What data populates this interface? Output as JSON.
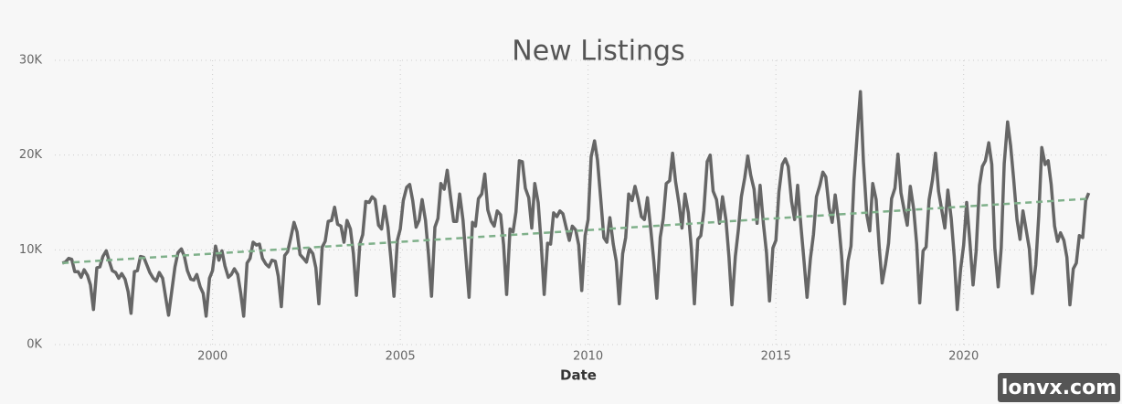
{
  "chart_data": {
    "type": "line",
    "title": "New Listings",
    "x_label": "Date",
    "watermark": "lonvx.com",
    "grid": true,
    "xlim": [
      1995.8,
      2023.9
    ],
    "xticks": [
      2000,
      2005,
      2010,
      2015,
      2020
    ],
    "ylim": [
      0,
      30000
    ],
    "yticks": [
      {
        "value": 0,
        "label": "0K"
      },
      {
        "value": 10000,
        "label": "10K"
      },
      {
        "value": 20000,
        "label": "20K"
      },
      {
        "value": 30000,
        "label": "30K"
      }
    ],
    "x": [
      1996,
      1996.08,
      1996.17,
      1996.25,
      1996.33,
      1996.42,
      1996.5,
      1996.58,
      1996.67,
      1996.75,
      1996.83,
      1996.92,
      1997,
      1997.08,
      1997.17,
      1997.25,
      1997.33,
      1997.42,
      1997.5,
      1997.58,
      1997.67,
      1997.75,
      1997.83,
      1997.92,
      1998,
      1998.08,
      1998.17,
      1998.25,
      1998.33,
      1998.42,
      1998.5,
      1998.58,
      1998.67,
      1998.75,
      1998.83,
      1998.92,
      1999,
      1999.08,
      1999.17,
      1999.25,
      1999.33,
      1999.42,
      1999.5,
      1999.58,
      1999.67,
      1999.75,
      1999.83,
      1999.92,
      2000,
      2000.08,
      2000.17,
      2000.25,
      2000.33,
      2000.42,
      2000.5,
      2000.58,
      2000.67,
      2000.75,
      2000.83,
      2000.92,
      2001,
      2001.08,
      2001.17,
      2001.25,
      2001.33,
      2001.42,
      2001.5,
      2001.58,
      2001.67,
      2001.75,
      2001.83,
      2001.92,
      2002,
      2002.08,
      2002.17,
      2002.25,
      2002.33,
      2002.42,
      2002.5,
      2002.58,
      2002.67,
      2002.75,
      2002.83,
      2002.92,
      2003,
      2003.08,
      2003.17,
      2003.25,
      2003.33,
      2003.42,
      2003.5,
      2003.58,
      2003.67,
      2003.75,
      2003.83,
      2003.92,
      2004,
      2004.08,
      2004.17,
      2004.25,
      2004.33,
      2004.42,
      2004.5,
      2004.58,
      2004.67,
      2004.75,
      2004.83,
      2004.92,
      2005,
      2005.08,
      2005.17,
      2005.25,
      2005.33,
      2005.42,
      2005.5,
      2005.58,
      2005.67,
      2005.75,
      2005.83,
      2005.92,
      2006,
      2006.08,
      2006.17,
      2006.25,
      2006.33,
      2006.42,
      2006.5,
      2006.58,
      2006.67,
      2006.75,
      2006.83,
      2006.92,
      2007,
      2007.08,
      2007.17,
      2007.25,
      2007.33,
      2007.42,
      2007.5,
      2007.58,
      2007.67,
      2007.75,
      2007.83,
      2007.92,
      2008,
      2008.08,
      2008.17,
      2008.25,
      2008.33,
      2008.42,
      2008.5,
      2008.58,
      2008.67,
      2008.75,
      2008.83,
      2008.92,
      2009,
      2009.08,
      2009.17,
      2009.25,
      2009.33,
      2009.42,
      2009.5,
      2009.58,
      2009.67,
      2009.75,
      2009.83,
      2009.92,
      2010,
      2010.08,
      2010.17,
      2010.25,
      2010.33,
      2010.42,
      2010.5,
      2010.58,
      2010.67,
      2010.75,
      2010.83,
      2010.92,
      2011,
      2011.08,
      2011.17,
      2011.25,
      2011.33,
      2011.42,
      2011.5,
      2011.58,
      2011.67,
      2011.75,
      2011.83,
      2011.92,
      2012,
      2012.08,
      2012.17,
      2012.25,
      2012.33,
      2012.42,
      2012.5,
      2012.58,
      2012.67,
      2012.75,
      2012.83,
      2012.92,
      2013,
      2013.08,
      2013.17,
      2013.25,
      2013.33,
      2013.42,
      2013.5,
      2013.58,
      2013.67,
      2013.75,
      2013.83,
      2013.92,
      2014,
      2014.08,
      2014.17,
      2014.25,
      2014.33,
      2014.42,
      2014.5,
      2014.58,
      2014.67,
      2014.75,
      2014.83,
      2014.92,
      2015,
      2015.08,
      2015.17,
      2015.25,
      2015.33,
      2015.42,
      2015.5,
      2015.58,
      2015.67,
      2015.75,
      2015.83,
      2015.92,
      2016,
      2016.08,
      2016.17,
      2016.25,
      2016.33,
      2016.42,
      2016.5,
      2016.58,
      2016.67,
      2016.75,
      2016.83,
      2016.92,
      2017,
      2017.08,
      2017.17,
      2017.25,
      2017.33,
      2017.42,
      2017.5,
      2017.58,
      2017.67,
      2017.75,
      2017.83,
      2017.92,
      2018,
      2018.08,
      2018.17,
      2018.25,
      2018.33,
      2018.42,
      2018.5,
      2018.58,
      2018.67,
      2018.75,
      2018.83,
      2018.92,
      2019,
      2019.08,
      2019.17,
      2019.25,
      2019.33,
      2019.42,
      2019.5,
      2019.58,
      2019.67,
      2019.75,
      2019.83,
      2019.92,
      2020,
      2020.08,
      2020.17,
      2020.25,
      2020.33,
      2020.42,
      2020.5,
      2020.58,
      2020.67,
      2020.75,
      2020.83,
      2020.92,
      2021,
      2021.08,
      2021.17,
      2021.25,
      2021.33,
      2021.42,
      2021.5,
      2021.58,
      2021.67,
      2021.75,
      2021.83,
      2021.92,
      2022,
      2022.08,
      2022.17,
      2022.25,
      2022.33,
      2022.42,
      2022.5,
      2022.58,
      2022.67,
      2022.75,
      2022.83,
      2022.92,
      2023,
      2023.08,
      2023.17,
      2023.25,
      2023.33
    ],
    "series": [
      {
        "name": "New Listings",
        "color": "#666666",
        "values": [
          8600,
          8700,
          9100,
          9000,
          7700,
          7700,
          7100,
          7900,
          7300,
          6300,
          3700,
          8100,
          8200,
          9300,
          9900,
          8800,
          7800,
          7600,
          7000,
          7500,
          6900,
          5600,
          3300,
          7700,
          7800,
          9300,
          9200,
          8400,
          7600,
          7000,
          6700,
          7600,
          7000,
          5000,
          3100,
          5800,
          8200,
          9700,
          10100,
          9300,
          7800,
          6900,
          6800,
          7400,
          6100,
          5400,
          3000,
          7000,
          7800,
          10400,
          8900,
          9900,
          8300,
          7100,
          7400,
          8000,
          7400,
          5400,
          3000,
          8600,
          9100,
          10800,
          10500,
          10600,
          9100,
          8500,
          8200,
          8900,
          8800,
          7200,
          4000,
          9400,
          9800,
          11200,
          12900,
          11900,
          9500,
          9100,
          8700,
          10100,
          9600,
          8100,
          4300,
          10300,
          10900,
          13000,
          13100,
          14500,
          12700,
          12500,
          10800,
          13100,
          12200,
          9600,
          5200,
          10600,
          11600,
          15100,
          15000,
          15600,
          15300,
          12600,
          12200,
          14600,
          12400,
          9000,
          5100,
          11000,
          12200,
          15200,
          16600,
          16900,
          15200,
          12400,
          13100,
          15300,
          13100,
          9500,
          5100,
          12400,
          13300,
          17000,
          16400,
          18400,
          15800,
          13000,
          13000,
          15900,
          13100,
          9000,
          5000,
          12900,
          12500,
          15400,
          15900,
          18000,
          14200,
          13000,
          12500,
          14100,
          13700,
          10500,
          5300,
          12200,
          11900,
          14000,
          19400,
          19300,
          16500,
          15500,
          12300,
          17000,
          15000,
          10700,
          5300,
          10700,
          10600,
          13900,
          13500,
          14100,
          13800,
          12300,
          11000,
          12500,
          12100,
          10500,
          5700,
          11500,
          13200,
          19800,
          21500,
          19500,
          15700,
          11300,
          10800,
          13400,
          10600,
          8800,
          4300,
          9600,
          11300,
          15900,
          15200,
          16700,
          15400,
          13500,
          13200,
          15500,
          12100,
          8800,
          4900,
          11300,
          13300,
          17000,
          17300,
          20200,
          17200,
          14900,
          12300,
          15900,
          13900,
          10100,
          4300,
          11100,
          11500,
          14100,
          19300,
          20000,
          16200,
          15300,
          12800,
          15600,
          13200,
          9300,
          4200,
          9300,
          12100,
          15600,
          17600,
          19900,
          17900,
          16400,
          12800,
          16800,
          12700,
          9700,
          4600,
          10200,
          11000,
          16100,
          19000,
          19600,
          18800,
          15100,
          13200,
          16800,
          12400,
          8800,
          5000,
          9100,
          11600,
          15600,
          16800,
          18200,
          17700,
          14400,
          12900,
          15800,
          13000,
          9400,
          4300,
          8800,
          10400,
          17400,
          22500,
          26700,
          19300,
          13700,
          12000,
          17000,
          15300,
          10400,
          6500,
          8500,
          10700,
          15400,
          16500,
          20100,
          16000,
          14100,
          12600,
          16700,
          14300,
          10600,
          4400,
          9900,
          10300,
          15300,
          17400,
          20200,
          16200,
          14100,
          12300,
          16300,
          13300,
          9300,
          3700,
          8000,
          10500,
          15000,
          10600,
          6300,
          9800,
          16800,
          18800,
          19400,
          21300,
          19000,
          10200,
          6100,
          10200,
          19100,
          23500,
          21000,
          17500,
          13200,
          11100,
          14100,
          12000,
          10100,
          5400,
          8400,
          13600,
          20800,
          19000,
          19400,
          16900,
          12500,
          10900,
          11800,
          11000,
          9200,
          4200,
          8000,
          8600,
          11500,
          11300,
          15200,
          16000
        ]
      }
    ],
    "trend": {
      "color": "#7fb08a",
      "x": [
        1996,
        2023.33
      ],
      "values": [
        8600,
        15400
      ]
    }
  }
}
